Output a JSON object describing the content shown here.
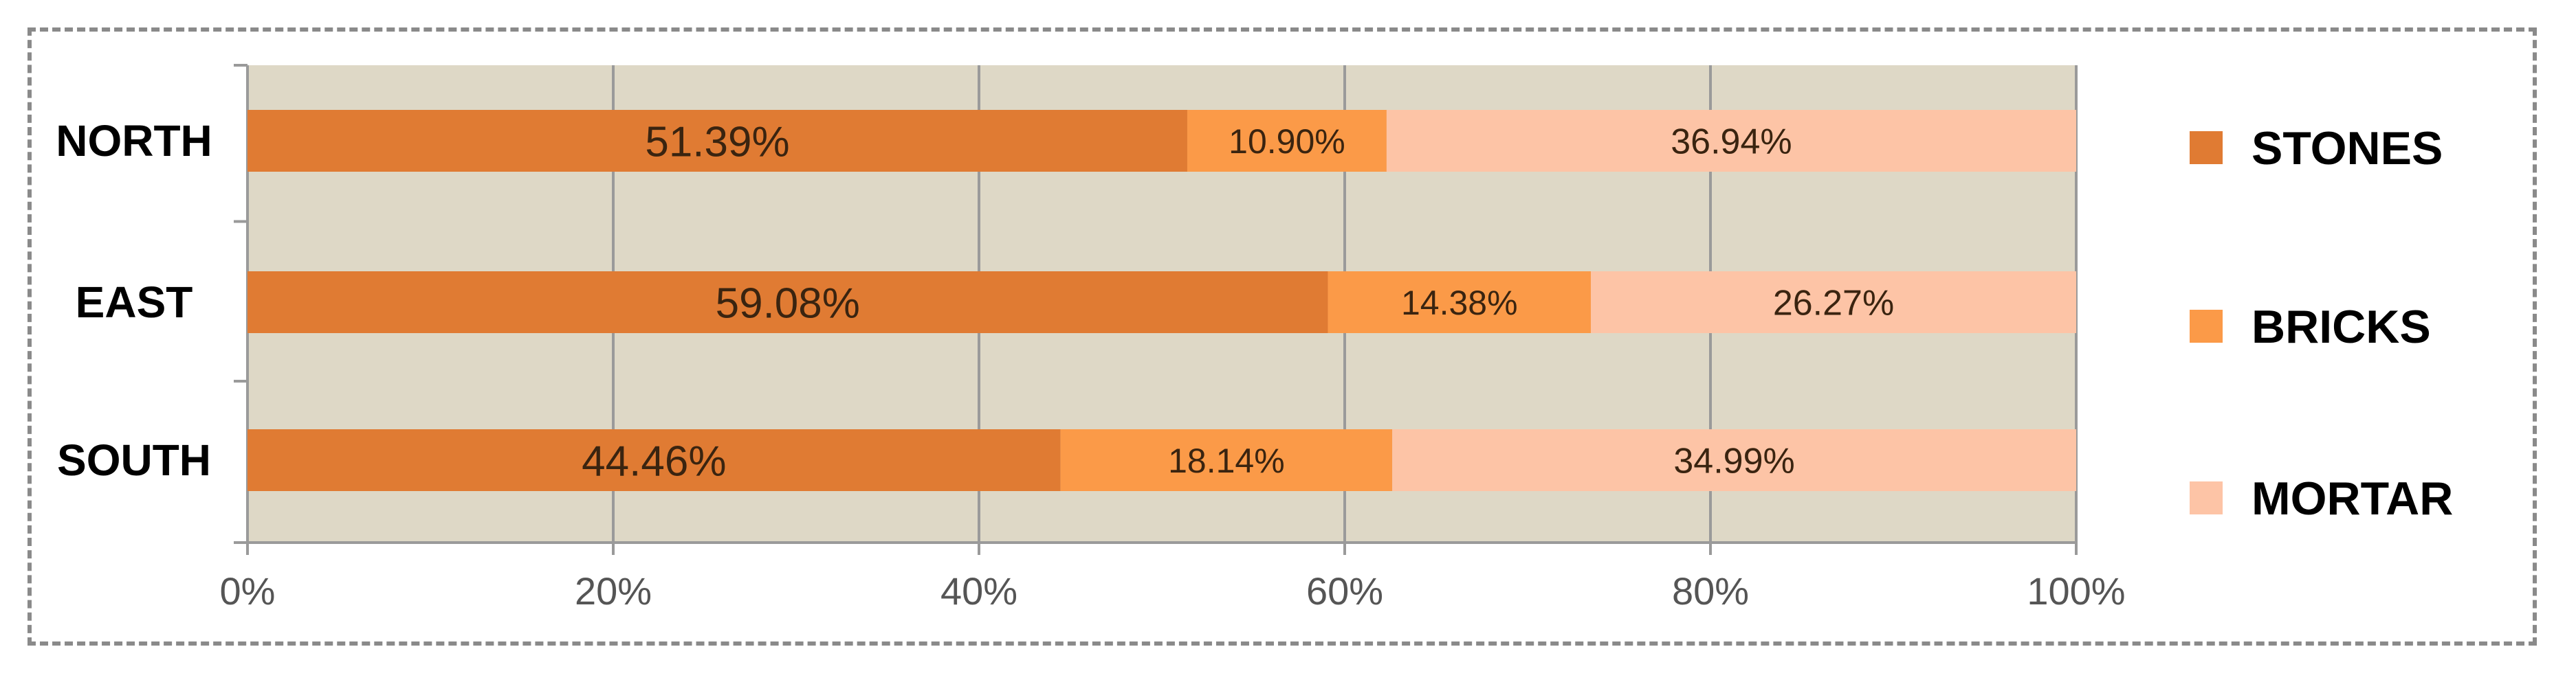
{
  "chart_data": {
    "type": "bar",
    "orientation": "horizontal",
    "stacked": true,
    "categories": [
      "NORTH",
      "EAST",
      "SOUTH"
    ],
    "series": [
      {
        "name": "STONES",
        "values": [
          51.39,
          59.08,
          44.46
        ],
        "labels": [
          "51.39%",
          "59.08%",
          "44.46%"
        ],
        "color": "#e07b33"
      },
      {
        "name": "BRICKS",
        "values": [
          10.9,
          14.38,
          18.14
        ],
        "labels": [
          "10.90%",
          "14.38%",
          "18.14%"
        ],
        "color": "#fb9a48"
      },
      {
        "name": "MORTAR",
        "values": [
          36.94,
          26.27,
          34.99
        ],
        "labels": [
          "36.94%",
          "26.27%",
          "34.99%"
        ],
        "color": "#fdc4a6"
      }
    ],
    "xlim": [
      0,
      100
    ],
    "xticks": [
      "0%",
      "20%",
      "40%",
      "60%",
      "80%",
      "100%"
    ],
    "grid": true,
    "plot_background": "#ded8c6",
    "legend_position": "right"
  }
}
